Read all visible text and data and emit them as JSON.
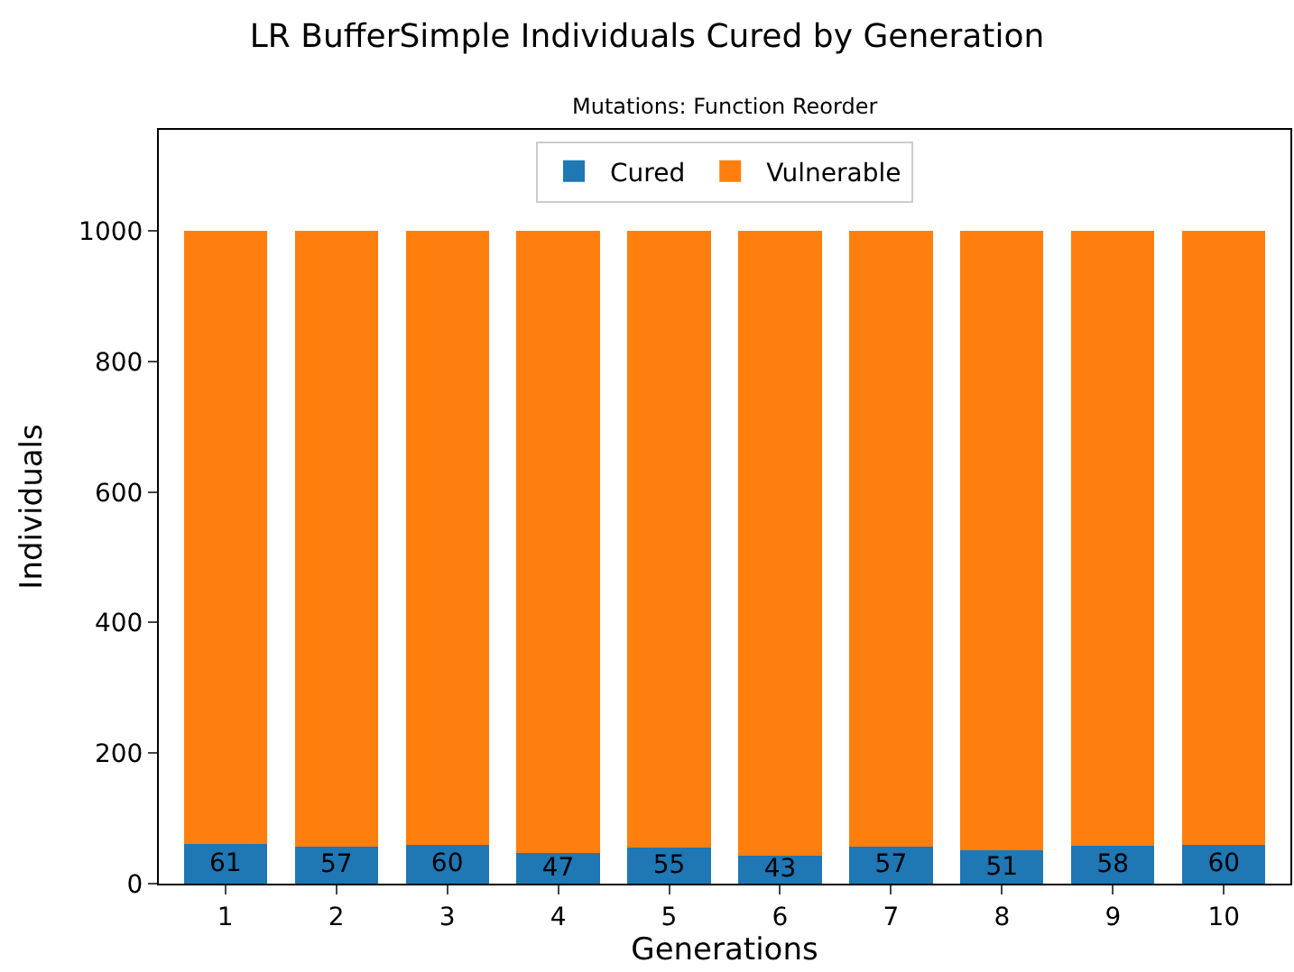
{
  "chart_data": {
    "type": "bar",
    "title": "LR BufferSimple Individuals Cured by Generation",
    "subtitle": "Mutations: Function Reorder",
    "xlabel": "Generations",
    "ylabel": "Individuals",
    "categories": [
      "1",
      "2",
      "3",
      "4",
      "5",
      "6",
      "7",
      "8",
      "9",
      "10"
    ],
    "stacked": true,
    "series": [
      {
        "name": "Cured",
        "color": "#1f77b4",
        "values": [
          61,
          57,
          60,
          47,
          55,
          43,
          57,
          51,
          58,
          60
        ],
        "value_labels": [
          "61",
          "57",
          "60",
          "47",
          "55",
          "43",
          "57",
          "51",
          "58",
          "60"
        ]
      },
      {
        "name": "Vulnerable",
        "color": "#ff7f0e",
        "values": [
          939,
          943,
          940,
          953,
          945,
          957,
          943,
          949,
          942,
          940
        ]
      }
    ],
    "ylim": [
      0,
      1155
    ],
    "yticks": [
      0,
      200,
      400,
      600,
      800,
      1000
    ],
    "legend": "top"
  }
}
